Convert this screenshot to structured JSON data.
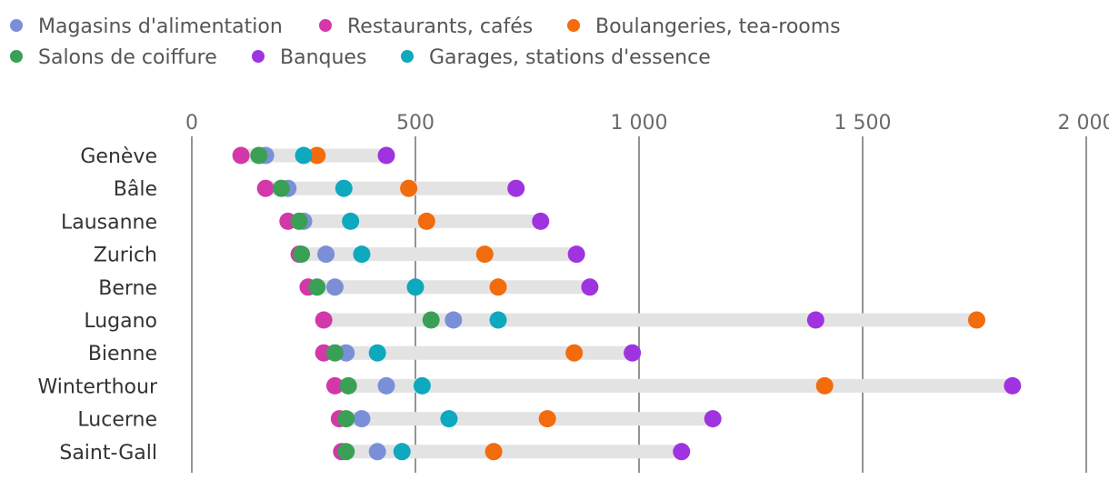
{
  "chart_data": {
    "type": "dot-range",
    "title": "",
    "xlabel": "",
    "ylabel": "",
    "xlim": [
      0,
      2000
    ],
    "x_ticks": [
      0,
      500,
      1000,
      1500,
      2000
    ],
    "x_tick_labels": [
      "0",
      "500",
      "1 000",
      "1 500",
      "2 000"
    ],
    "grid": true,
    "legend_position": "top-left",
    "categories": [
      "Genève",
      "Bâle",
      "Lausanne",
      "Zurich",
      "Berne",
      "Lugano",
      "Bienne",
      "Winterthour",
      "Lucerne",
      "Saint-Gall"
    ],
    "series": [
      {
        "name": "Magasins d'alimentation",
        "color": "#7b8fd9",
        "values": [
          165,
          215,
          250,
          300,
          320,
          585,
          345,
          435,
          380,
          415
        ]
      },
      {
        "name": "Restaurants, cafés",
        "color": "#d238a8",
        "values": [
          110,
          165,
          215,
          240,
          260,
          295,
          295,
          320,
          330,
          335
        ]
      },
      {
        "name": "Boulangeries, tea-rooms",
        "color": "#f26b0d",
        "values": [
          280,
          485,
          525,
          655,
          685,
          1755,
          855,
          1415,
          795,
          675
        ]
      },
      {
        "name": "Salons de coiffure",
        "color": "#3aa055",
        "values": [
          150,
          200,
          240,
          245,
          280,
          535,
          320,
          350,
          345,
          345
        ]
      },
      {
        "name": "Banques",
        "color": "#a033e0",
        "values": [
          435,
          725,
          780,
          860,
          890,
          1395,
          985,
          1835,
          1165,
          1095
        ]
      },
      {
        "name": "Garages, stations d'essence",
        "color": "#0ea8bf",
        "values": [
          250,
          340,
          355,
          380,
          500,
          685,
          415,
          515,
          575,
          470
        ]
      }
    ]
  }
}
